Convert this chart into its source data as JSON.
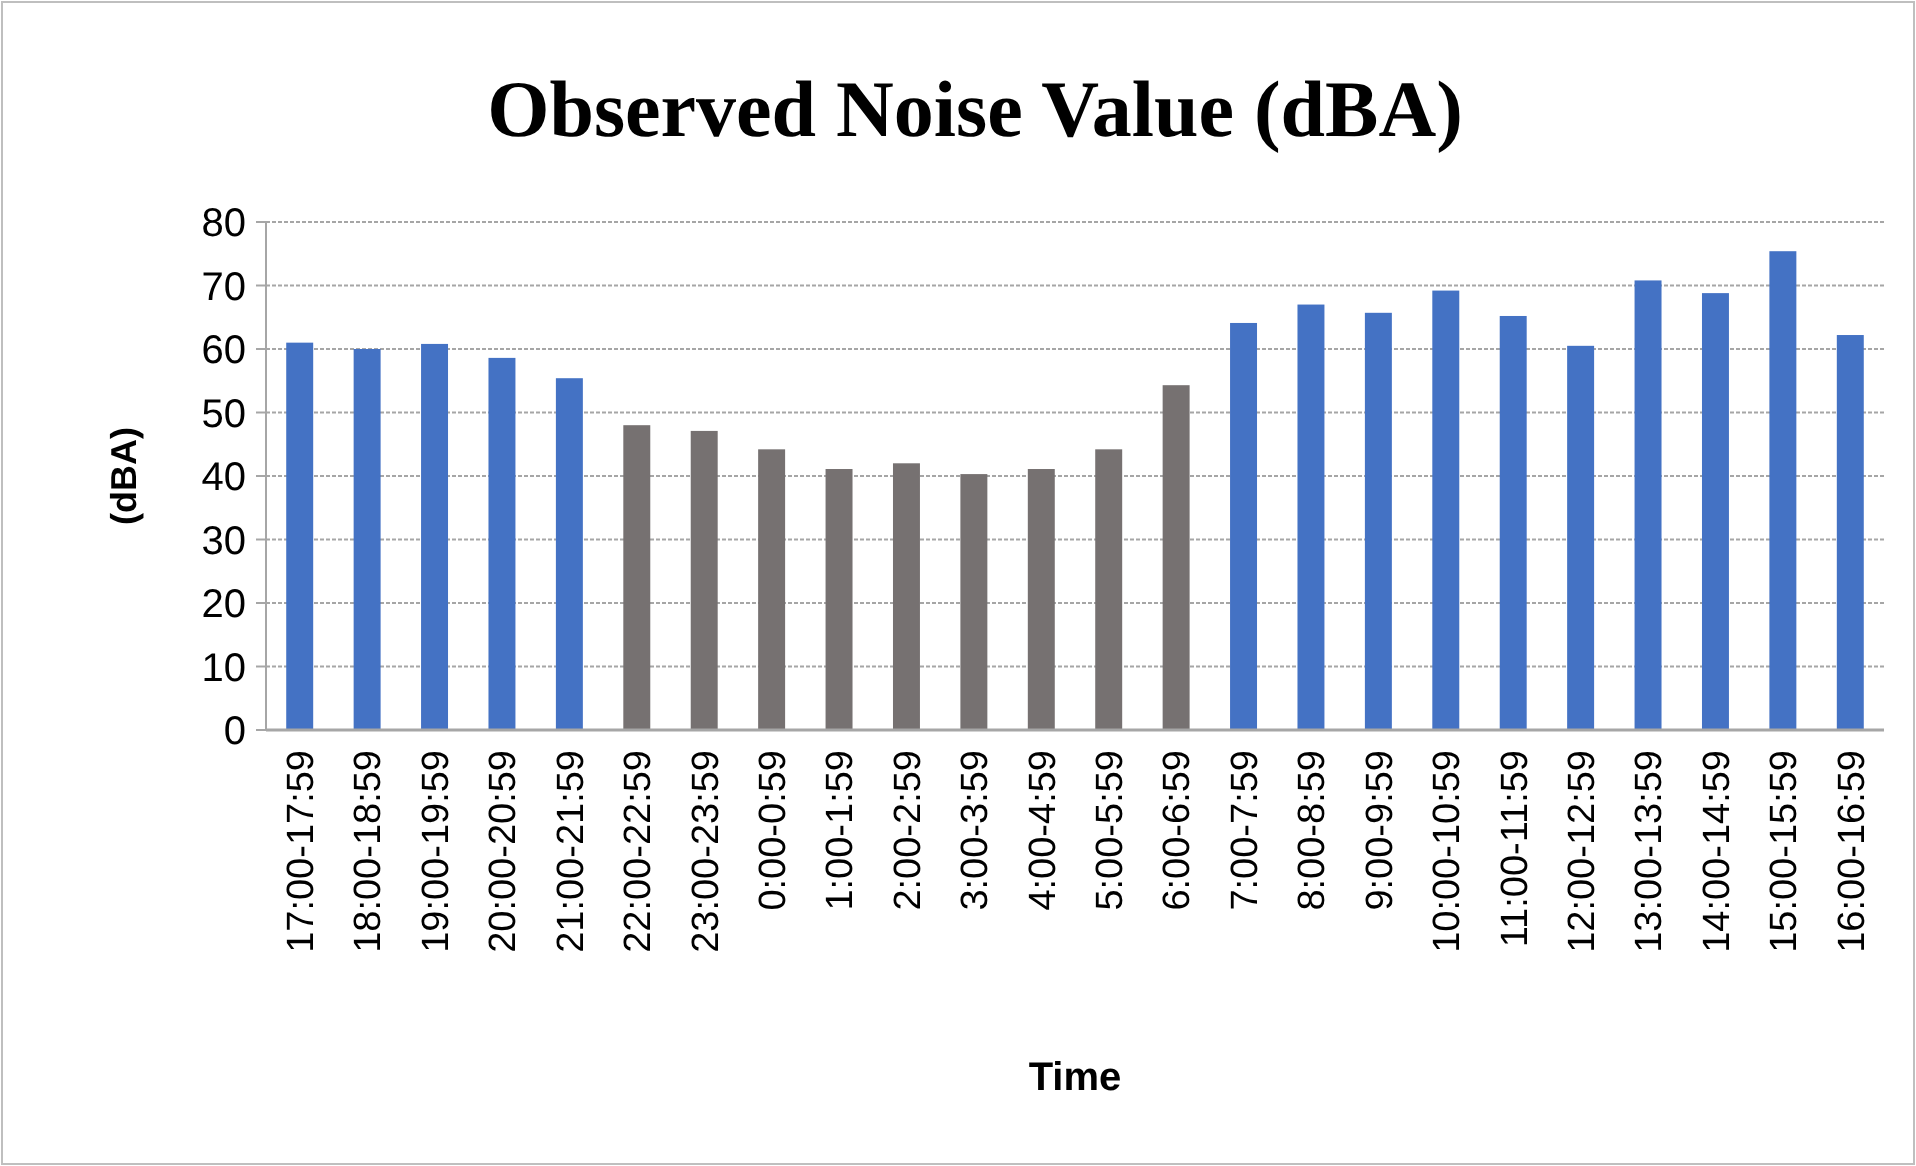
{
  "chart_data": {
    "type": "bar",
    "title": "Observed Noise Value (dBA)",
    "xlabel": "Time",
    "ylabel": "(dBA)",
    "categories": [
      "17:00-17:59",
      "18:00-18:59",
      "19:00-19:59",
      "20:00-20:59",
      "21:00-21:59",
      "22:00-22:59",
      "23:00-23:59",
      "0:00-0:59",
      "1:00-1:59",
      "2:00-2:59",
      "3:00-3:59",
      "4:00-4:59",
      "5:00-5:59",
      "6:00-6:59",
      "7:00-7:59",
      "8:00-8:59",
      "9:00-9:59",
      "10:00-10:59",
      "11:00-11:59",
      "12:00-12:59",
      "13:00-13:59",
      "14:00-14:59",
      "15:00-15:59",
      "16:00-16:59"
    ],
    "values": [
      61.0,
      60.0,
      60.8,
      58.6,
      55.4,
      48.0,
      47.1,
      44.2,
      41.1,
      42.0,
      40.3,
      41.1,
      44.2,
      54.3,
      64.1,
      67.0,
      65.7,
      69.2,
      65.2,
      60.5,
      70.8,
      68.8,
      75.4,
      62.2
    ],
    "colors": [
      "#4472c4",
      "#4472c4",
      "#4472c4",
      "#4472c4",
      "#4472c4",
      "#767171",
      "#767171",
      "#767171",
      "#767171",
      "#767171",
      "#767171",
      "#767171",
      "#767171",
      "#767171",
      "#4472c4",
      "#4472c4",
      "#4472c4",
      "#4472c4",
      "#4472c4",
      "#4472c4",
      "#4472c4",
      "#4472c4",
      "#4472c4",
      "#4472c4"
    ],
    "ylim": [
      0,
      80
    ],
    "yticks": [
      0,
      10,
      20,
      30,
      40,
      50,
      60,
      70,
      80
    ],
    "grid": "y"
  }
}
